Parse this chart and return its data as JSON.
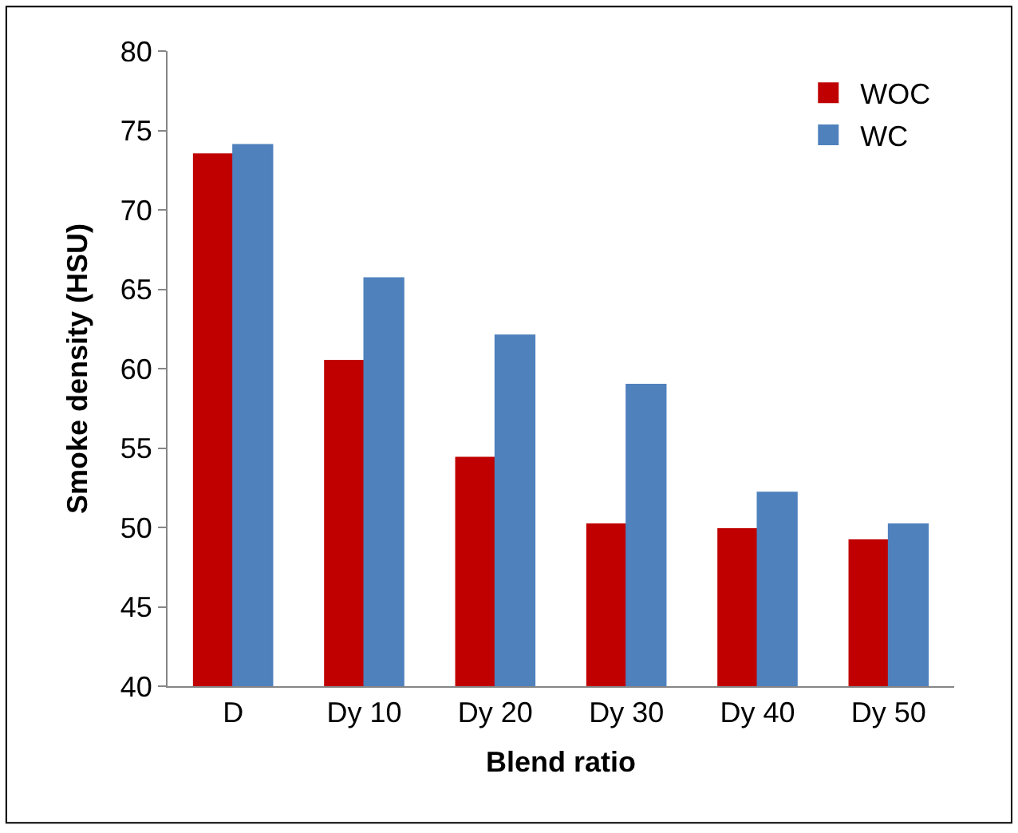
{
  "chart_data": {
    "type": "bar",
    "xlabel": "Blend ratio",
    "ylabel": "Smoke density (HSU)",
    "categories": [
      "D",
      "Dy 10",
      "Dy 20",
      "Dy 30",
      "Dy 40",
      "Dy 50"
    ],
    "series": [
      {
        "name": "WOC",
        "color": "#c00000",
        "values": [
          73.5,
          60.5,
          54.4,
          50.2,
          49.9,
          49.2
        ]
      },
      {
        "name": "WC",
        "color": "#4f81bd",
        "values": [
          74.1,
          65.7,
          62.1,
          59.0,
          52.2,
          50.2
        ]
      }
    ],
    "ylim": [
      40,
      80
    ],
    "yticks": [
      40,
      45,
      50,
      55,
      60,
      65,
      70,
      75,
      80
    ],
    "legend": "top right"
  }
}
